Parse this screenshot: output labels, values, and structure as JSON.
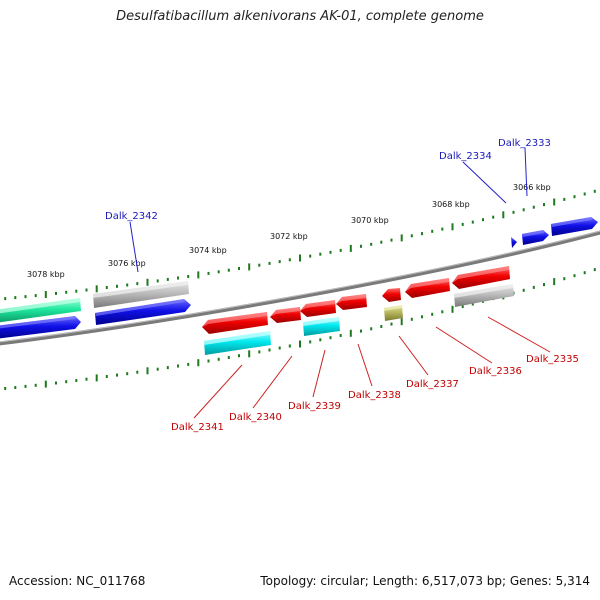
{
  "title": "Desulfatibacillum alkenivorans AK-01, complete genome",
  "footer": {
    "accession": "Accession: NC_011768",
    "summary": "Topology: circular; Length: 6,517,073 bp; Genes: 5,314"
  },
  "colors": {
    "backbone": "#8a8a8a",
    "tick": "#1e7a1e",
    "blue_label": "#1a1ab8",
    "red_label": "#c00000"
  },
  "scale_labels": [
    "3066 kbp",
    "3068 kbp",
    "3070 kbp",
    "3072 kbp",
    "3074 kbp",
    "3076 kbp",
    "3078 kbp"
  ],
  "gene_labels_top": [
    "Dalk_2333",
    "Dalk_2334",
    "Dalk_2342"
  ],
  "gene_labels_bottom": [
    "Dalk_2335",
    "Dalk_2336",
    "Dalk_2337",
    "Dalk_2338",
    "Dalk_2339",
    "Dalk_2340",
    "Dalk_2341"
  ]
}
